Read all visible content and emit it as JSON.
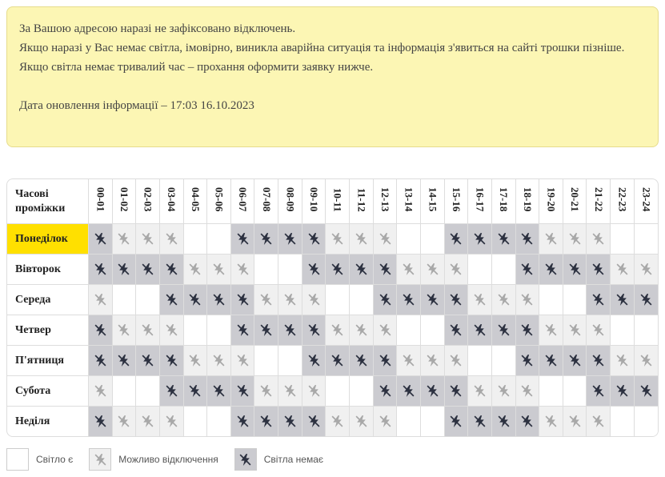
{
  "notice": {
    "lines": [
      "За Вашою адресою наразі не зафіксовано відключень.",
      "Якщо наразі у Вас немає світла, імовірно, виникла аварійна ситуація та інформація з'явиться на сайті трошки пізніше.",
      "Якщо світла немає тривалий час – прохання оформити заявку нижче."
    ],
    "updated": "Дата оновлення інформації – 17:03 16.10.2023"
  },
  "schedule": {
    "corner": "Часові проміжки",
    "hours": [
      "00-01",
      "01-02",
      "02-03",
      "03-04",
      "04-05",
      "05-06",
      "06-07",
      "07-08",
      "08-09",
      "09-10",
      "10-11",
      "11-12",
      "12-13",
      "13-14",
      "14-15",
      "15-16",
      "16-17",
      "17-18",
      "18-19",
      "19-20",
      "20-21",
      "21-22",
      "22-23",
      "23-24"
    ],
    "highlight_day": 0,
    "days": [
      {
        "name": "Понеділок",
        "cells": [
          2,
          1,
          1,
          1,
          0,
          0,
          2,
          2,
          2,
          2,
          1,
          1,
          1,
          0,
          0,
          2,
          2,
          2,
          2,
          1,
          1,
          1,
          0,
          0
        ]
      },
      {
        "name": "Вівторок",
        "cells": [
          2,
          2,
          2,
          2,
          1,
          1,
          1,
          0,
          0,
          2,
          2,
          2,
          2,
          1,
          1,
          1,
          0,
          0,
          2,
          2,
          2,
          2,
          1,
          1
        ]
      },
      {
        "name": "Середа",
        "cells": [
          1,
          0,
          0,
          2,
          2,
          2,
          2,
          1,
          1,
          1,
          0,
          0,
          2,
          2,
          2,
          2,
          1,
          1,
          1,
          0,
          0,
          2,
          2,
          2
        ]
      },
      {
        "name": "Четвер",
        "cells": [
          2,
          1,
          1,
          1,
          0,
          0,
          2,
          2,
          2,
          2,
          1,
          1,
          1,
          0,
          0,
          2,
          2,
          2,
          2,
          1,
          1,
          1,
          0,
          0
        ]
      },
      {
        "name": "П'ятниця",
        "cells": [
          2,
          2,
          2,
          2,
          1,
          1,
          1,
          0,
          0,
          2,
          2,
          2,
          2,
          1,
          1,
          1,
          0,
          0,
          2,
          2,
          2,
          2,
          1,
          1
        ]
      },
      {
        "name": "Субота",
        "cells": [
          1,
          0,
          0,
          2,
          2,
          2,
          2,
          1,
          1,
          1,
          0,
          0,
          2,
          2,
          2,
          2,
          1,
          1,
          1,
          0,
          0,
          2,
          2,
          2
        ]
      },
      {
        "name": "Неділя",
        "cells": [
          2,
          1,
          1,
          1,
          0,
          0,
          2,
          2,
          2,
          2,
          1,
          1,
          1,
          0,
          0,
          2,
          2,
          2,
          2,
          1,
          1,
          1,
          0,
          0
        ]
      }
    ]
  },
  "legend": [
    "Світло є",
    "Можливо відключення",
    "Світла немає"
  ]
}
